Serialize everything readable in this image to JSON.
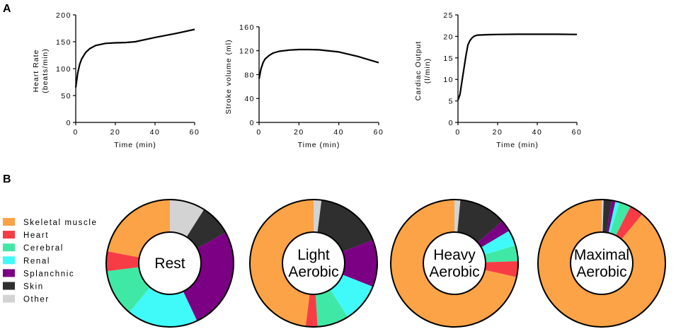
{
  "panel_labels": [
    "A",
    "B"
  ],
  "colors": {
    "Skeletal muscle": "#fba346",
    "Heart": "#f73c45",
    "Cerebral": "#40e8a6",
    "Renal": "#40fafa",
    "Splanchnic": "#7b0083",
    "Skin": "#2f2f2f",
    "Other": "#d3d3d3"
  },
  "chart_data": [
    {
      "type": "line",
      "xlabel": "Time (min)",
      "ylabel": [
        "Heart Rate",
        "(beats/min)"
      ],
      "xlim": [
        0,
        60
      ],
      "ylim": [
        0,
        200
      ],
      "xticks": [
        0,
        20,
        40,
        60
      ],
      "yticks": [
        0,
        50,
        100,
        150,
        200
      ],
      "grid": false,
      "x": [
        0,
        1,
        2,
        3,
        5,
        7,
        10,
        15,
        20,
        25,
        30,
        40,
        50,
        60
      ],
      "y": [
        65,
        92,
        108,
        118,
        130,
        137,
        143,
        147,
        148,
        148.5,
        150,
        158,
        165,
        173
      ]
    },
    {
      "type": "line",
      "xlabel": "Time (min)",
      "ylabel": [
        "Stroke volume (ml)"
      ],
      "xlim": [
        0,
        60
      ],
      "ylim": [
        0,
        180
      ],
      "xticks": [
        0,
        20,
        40,
        60
      ],
      "yticks": [
        0,
        40,
        80,
        120,
        160
      ],
      "grid": false,
      "x": [
        0,
        1,
        2,
        3,
        5,
        7,
        10,
        15,
        20,
        25,
        30,
        40,
        50,
        60
      ],
      "y": [
        73,
        90,
        100,
        106,
        112,
        116,
        119,
        121,
        122,
        122,
        121.5,
        118,
        110,
        100
      ]
    },
    {
      "type": "line",
      "xlabel": "Time (min)",
      "ylabel": [
        "Cardiac Output",
        "(l/min)"
      ],
      "xlim": [
        0,
        60
      ],
      "ylim": [
        0,
        25
      ],
      "xticks": [
        0,
        20,
        40,
        60
      ],
      "yticks": [
        0,
        5,
        10,
        15,
        20,
        25
      ],
      "grid": false,
      "x": [
        0,
        1,
        2,
        3,
        4,
        5,
        6,
        7,
        8,
        9,
        10,
        15,
        20,
        30,
        40,
        50,
        60
      ],
      "y": [
        5.2,
        6.5,
        9.5,
        12.5,
        15.5,
        18,
        19,
        19.6,
        20,
        20.2,
        20.3,
        20.4,
        20.45,
        20.5,
        20.5,
        20.5,
        20.45
      ]
    },
    {
      "type": "pie",
      "legend": [
        "Skeletal muscle",
        "Heart",
        "Cerebral",
        "Renal",
        "Splanchnic",
        "Skin",
        "Other"
      ],
      "legend_placement": "left",
      "slice_order_clockwise_from_top": [
        "Other",
        "Skin",
        "Splanchnic",
        "Renal",
        "Cerebral",
        "Heart",
        "Skeletal muscle"
      ],
      "donuts": [
        {
          "label": [
            "Rest"
          ],
          "values": {
            "Other": 9,
            "Skin": 8,
            "Splanchnic": 26,
            "Renal": 18,
            "Cerebral": 12,
            "Heart": 5,
            "Skeletal muscle": 22
          }
        },
        {
          "label": [
            "Light",
            "Aerobic"
          ],
          "values": {
            "Other": 2,
            "Skin": 17,
            "Splanchnic": 12,
            "Renal": 10,
            "Cerebral": 8,
            "Heart": 3,
            "Skeletal muscle": 48
          }
        },
        {
          "label": [
            "Heavy",
            "Aerobic"
          ],
          "values": {
            "Other": 1.5,
            "Skin": 12,
            "Splanchnic": 3,
            "Renal": 4,
            "Cerebral": 4,
            "Heart": 4,
            "Skeletal muscle": 71.5
          }
        },
        {
          "label": [
            "Maximal",
            "Aerobic"
          ],
          "values": {
            "Other": 0.5,
            "Skin": 2,
            "Splanchnic": 1,
            "Renal": 1,
            "Cerebral": 3,
            "Heart": 3.5,
            "Skeletal muscle": 89
          }
        }
      ]
    }
  ]
}
